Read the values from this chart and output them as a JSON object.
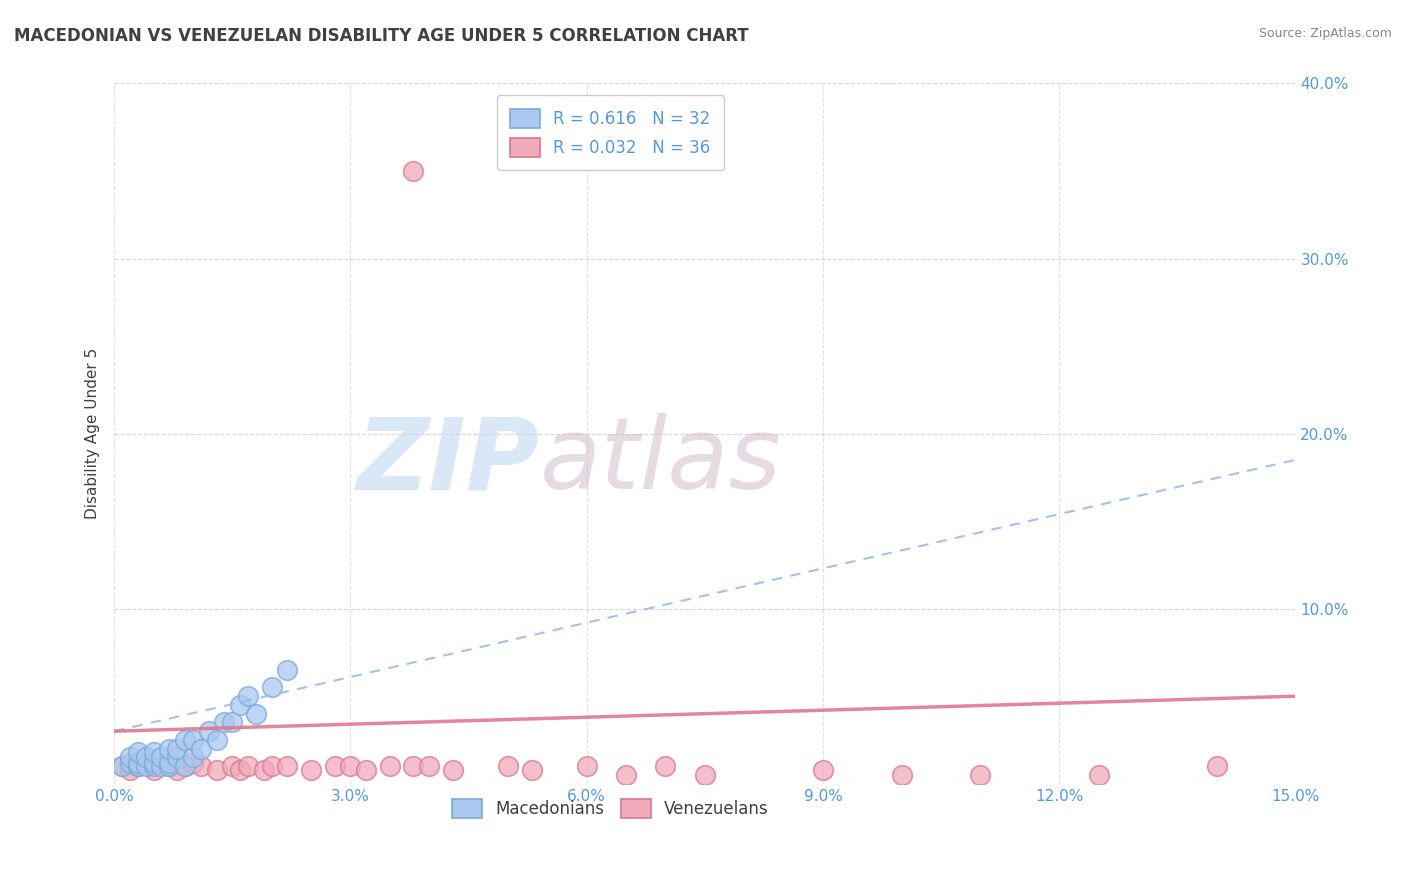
{
  "title": "MACEDONIAN VS VENEZUELAN DISABILITY AGE UNDER 5 CORRELATION CHART",
  "source_text": "Source: ZipAtlas.com",
  "ylabel": "Disability Age Under 5",
  "xlim": [
    0.0,
    0.15
  ],
  "ylim": [
    0.0,
    0.4
  ],
  "xticks": [
    0.0,
    0.03,
    0.06,
    0.09,
    0.12,
    0.15
  ],
  "yticks": [
    0.0,
    0.1,
    0.2,
    0.3,
    0.4
  ],
  "xtick_labels": [
    "0.0%",
    "3.0%",
    "6.0%",
    "9.0%",
    "12.0%",
    "15.0%"
  ],
  "ytick_labels": [
    "",
    "10.0%",
    "20.0%",
    "30.0%",
    "40.0%"
  ],
  "macedonian_R": 0.616,
  "macedonian_N": 32,
  "venezuelan_R": 0.032,
  "venezuelan_N": 36,
  "macedonian_color": "#aac8f0",
  "macedonian_edge": "#7aaad8",
  "venezuelan_color": "#f0aaba",
  "venezuelan_edge": "#d87890",
  "macedonian_trend_color": "#99bbee",
  "venezuelan_trend_color": "#e07890",
  "background_color": "#ffffff",
  "grid_color": "#cccccc",
  "title_color": "#404040",
  "axis_label_color": "#5599dd",
  "watermark_zip_color": "#c0d8f0",
  "watermark_atlas_color": "#d0b8c8",
  "mac_x": [
    0.001,
    0.002,
    0.002,
    0.003,
    0.003,
    0.003,
    0.004,
    0.004,
    0.005,
    0.005,
    0.005,
    0.006,
    0.006,
    0.007,
    0.007,
    0.007,
    0.008,
    0.008,
    0.009,
    0.009,
    0.01,
    0.01,
    0.011,
    0.012,
    0.013,
    0.014,
    0.015,
    0.016,
    0.017,
    0.018,
    0.02,
    0.022
  ],
  "mac_y": [
    0.01,
    0.012,
    0.015,
    0.01,
    0.012,
    0.018,
    0.01,
    0.015,
    0.01,
    0.012,
    0.018,
    0.01,
    0.015,
    0.01,
    0.012,
    0.02,
    0.015,
    0.02,
    0.01,
    0.025,
    0.015,
    0.025,
    0.02,
    0.03,
    0.025,
    0.035,
    0.035,
    0.045,
    0.05,
    0.04,
    0.055,
    0.065
  ],
  "ven_x": [
    0.001,
    0.002,
    0.003,
    0.005,
    0.007,
    0.008,
    0.009,
    0.01,
    0.011,
    0.013,
    0.015,
    0.016,
    0.017,
    0.019,
    0.02,
    0.022,
    0.025,
    0.028,
    0.03,
    0.032,
    0.035,
    0.038,
    0.04,
    0.043,
    0.05,
    0.053,
    0.06,
    0.065,
    0.07,
    0.075,
    0.09,
    0.1,
    0.11,
    0.125,
    0.14,
    0.038
  ],
  "ven_y": [
    0.01,
    0.008,
    0.01,
    0.008,
    0.01,
    0.008,
    0.01,
    0.012,
    0.01,
    0.008,
    0.01,
    0.008,
    0.01,
    0.008,
    0.01,
    0.01,
    0.008,
    0.01,
    0.01,
    0.008,
    0.01,
    0.01,
    0.01,
    0.008,
    0.01,
    0.008,
    0.01,
    0.005,
    0.01,
    0.005,
    0.008,
    0.005,
    0.005,
    0.005,
    0.01,
    0.35
  ],
  "mac_trend_x": [
    0.0,
    0.15
  ],
  "mac_trend_y": [
    0.03,
    0.185
  ],
  "ven_trend_x": [
    0.0,
    0.15
  ],
  "ven_trend_y": [
    0.03,
    0.05
  ]
}
